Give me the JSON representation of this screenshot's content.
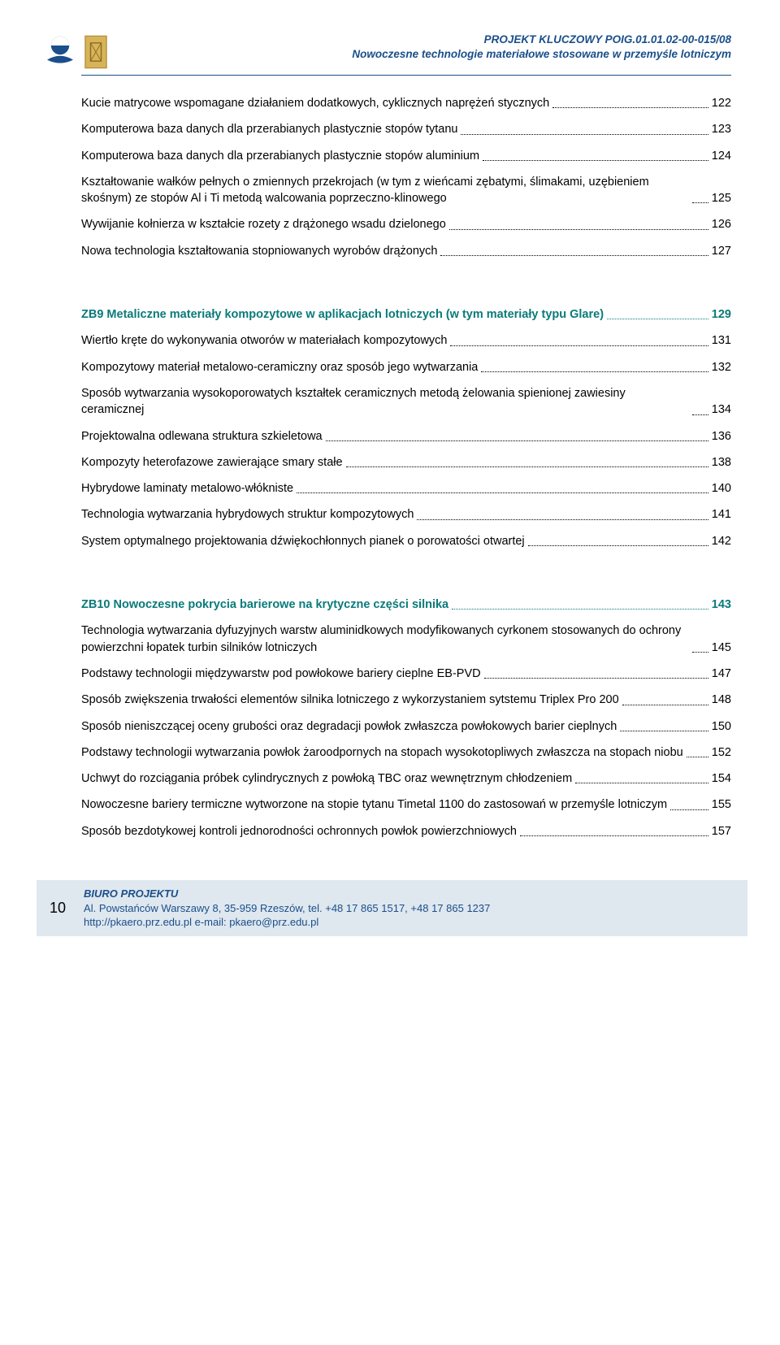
{
  "header": {
    "project_code": "PROJEKT KLUCZOWY POIG.01.01.02-00-015/08",
    "project_title": "Nowoczesne technologie materiałowe stosowane w przemyśle lotniczym"
  },
  "toc": [
    {
      "title": "Kucie matrycowe wspomagane działaniem  dodatkowych, cyklicznych naprężeń stycznych",
      "page": "122",
      "heading": false
    },
    {
      "title": "Komputerowa baza danych dla przerabianych  plastycznie stopów tytanu",
      "page": "123",
      "heading": false
    },
    {
      "title": "Komputerowa baza danych dla przerabianych  plastycznie stopów aluminium",
      "page": "124",
      "heading": false
    },
    {
      "title": "Kształtowanie wałków pełnych o zmiennych  przekrojach (w tym z wieńcami zębatymi, ślimakami, uzębieniem skośnym) ze stopów Al  i Ti metodą walcowania poprzeczno-klinowego",
      "page": "125",
      "heading": false
    },
    {
      "title": "Wywijanie kołnierza w kształcie rozety  z drążonego wsadu dzielonego",
      "page": "126",
      "heading": false
    },
    {
      "title": "Nowa technologia kształtowania stopniowanych  wyrobów drążonych",
      "page": "127",
      "heading": false
    },
    {
      "title": "ZB9 Metaliczne materiały kompozytowe  w aplikacjach lotniczych  (w tym materiały typu Glare)",
      "page": "129",
      "heading": true,
      "spacer_before": true
    },
    {
      "title": "Wiertło kręte do wykonywania otworów  w materiałach kompozytowych",
      "page": "131",
      "heading": false
    },
    {
      "title": "Kompozytowy materiał metalowo-ceramiczny  oraz sposób jego wytwarzania",
      "page": "132",
      "heading": false
    },
    {
      "title": "Sposób wytwarzania wysokoporowatych  kształtek ceramicznych metodą żelowania spienionej zawiesiny ceramicznej",
      "page": "134",
      "heading": false
    },
    {
      "title": "Projektowalna odlewana struktura szkieletowa",
      "page": "136",
      "heading": false
    },
    {
      "title": "Kompozyty heterofazowe zawierające  smary stałe",
      "page": "138",
      "heading": false
    },
    {
      "title": "Hybrydowe laminaty metalowo-włókniste",
      "page": "140",
      "heading": false
    },
    {
      "title": "Technologia wytwarzania hybrydowych struktur kompozytowych",
      "page": "141",
      "heading": false
    },
    {
      "title": "System optymalnego projektowania  dźwiękochłonnych pianek o porowatości  otwartej",
      "page": "142",
      "heading": false
    },
    {
      "title": "ZB10 Nowoczesne pokrycia barierowe  na krytyczne części silnika",
      "page": "143",
      "heading": true,
      "spacer_before": true
    },
    {
      "title": "Technologia wytwarzania dyfuzyjnych warstw aluminidkowych modyfikowanych cyrkonem stosowanych do ochrony powierzchni łopatek  turbin silników lotniczych",
      "page": "145",
      "heading": false
    },
    {
      "title": "Podstawy technologii międzywarstw  pod powłokowe bariery cieplne EB-PVD",
      "page": "147",
      "heading": false
    },
    {
      "title": "Sposób zwiększenia trwałości elementów  silnika lotniczego z wykorzystaniem sytstemu Triplex Pro 200",
      "page": "148",
      "heading": false
    },
    {
      "title": "Sposób nieniszczącej oceny grubości  oraz degradacji powłok zwłaszcza  powłokowych barier cieplnych",
      "page": "150",
      "heading": false
    },
    {
      "title": "Podstawy technologii wytwarzania powłok  żaroodpornych na stopach wysokotopliwych zwłaszcza na stopach niobu",
      "page": "152",
      "heading": false
    },
    {
      "title": "Uchwyt do rozciągania próbek cylindrycznych  z powłoką TBC oraz wewnętrznym chłodzeniem",
      "page": "154",
      "heading": false
    },
    {
      "title": "Nowoczesne bariery termiczne wytworzone  na stopie tytanu Timetal 1100 do zastosowań w przemyśle lotniczym",
      "page": "155",
      "heading": false
    },
    {
      "title": "Sposób bezdotykowej kontroli jednorodności  ochronnych powłok powierzchniowych",
      "page": "157",
      "heading": false
    }
  ],
  "footer": {
    "page_number": "10",
    "office_label": "BIURO PROJEKTU",
    "address": "Al. Powstańców Warszawy 8, 35-959 Rzeszów, tel. +48 17 865 1517, +48 17 865 1237",
    "contact": "http://pkaero.prz.edu.pl e-mail: pkaero@prz.edu.pl"
  },
  "colors": {
    "header_blue": "#1a4f8a",
    "heading_teal": "#0a7a7a",
    "footer_bg": "#dfe7ef",
    "text": "#000000"
  }
}
